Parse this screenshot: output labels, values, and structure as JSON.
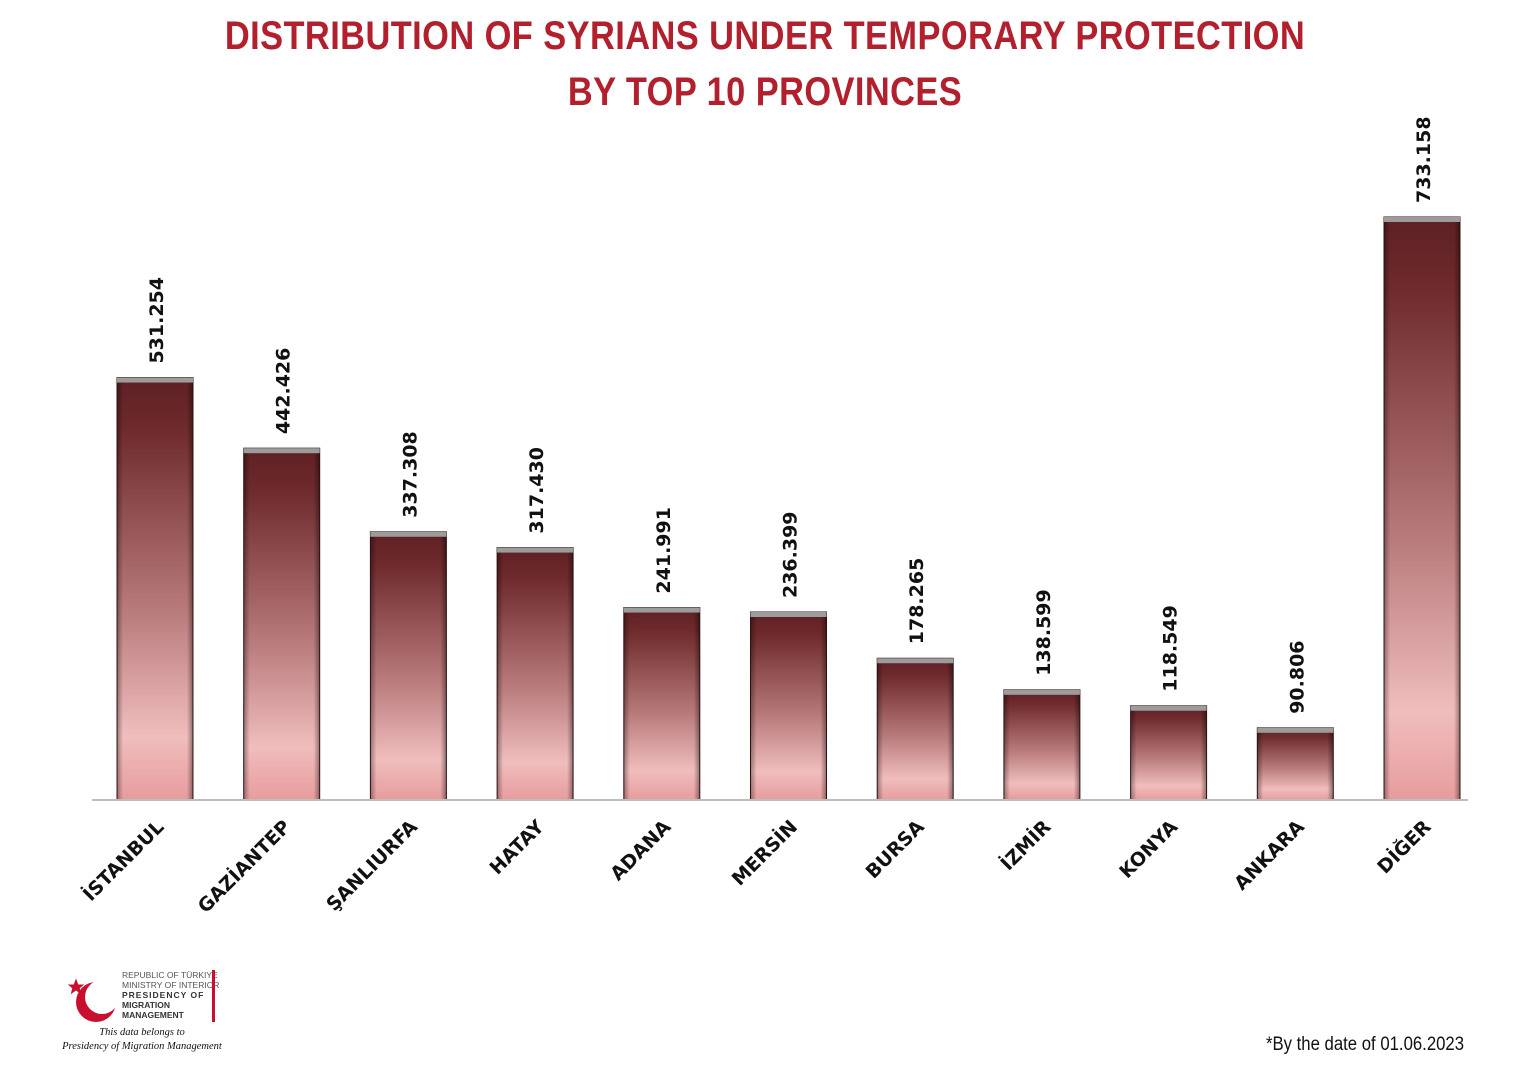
{
  "header": {
    "title_line1": "DISTRIBUTION OF SYRIANS UNDER TEMPORARY PROTECTION",
    "title_line2": "BY TOP 10 PROVINCES"
  },
  "chart_data": {
    "type": "bar",
    "title": "DISTRIBUTION OF SYRIANS UNDER TEMPORARY PROTECTION BY TOP 10 PROVINCES",
    "categories": [
      "İSTANBUL",
      "GAZİANTEP",
      "ŞANLIURFA",
      "HATAY",
      "ADANA",
      "MERSİN",
      "BURSA",
      "İZMİR",
      "KONYA",
      "ANKARA",
      "DİĞER"
    ],
    "values": [
      531254,
      442426,
      337308,
      317430,
      241991,
      236399,
      178265,
      138599,
      118549,
      90806,
      733158
    ],
    "value_labels": [
      "531.254",
      "442.426",
      "337.308",
      "317.430",
      "241.991",
      "236.399",
      "178.265",
      "138.599",
      "118.549",
      "90.806",
      "733.158"
    ],
    "xlabel": "",
    "ylabel": "",
    "ylim": [
      0,
      800000
    ],
    "grid": false,
    "legend": "none",
    "colors": {
      "bar_dark": "#6e2a2c",
      "bar_light": "#efb9b9",
      "bar_bottom": "#e79c9d",
      "title": "#b21f2d"
    }
  },
  "footer": {
    "date_note": "*By the date of 01.06.2023",
    "logo_line1": "REPUBLIC OF TÜRKIYE",
    "logo_line2": "MINISTRY OF INTERIOR",
    "logo_line3": "PRESIDENCY OF",
    "logo_line4": "MIGRATION MANAGEMENT",
    "belongs_line1": "This data belongs to",
    "belongs_line2": "Presidency of Migration Management",
    "logo_icon": "crescent-star-icon"
  }
}
